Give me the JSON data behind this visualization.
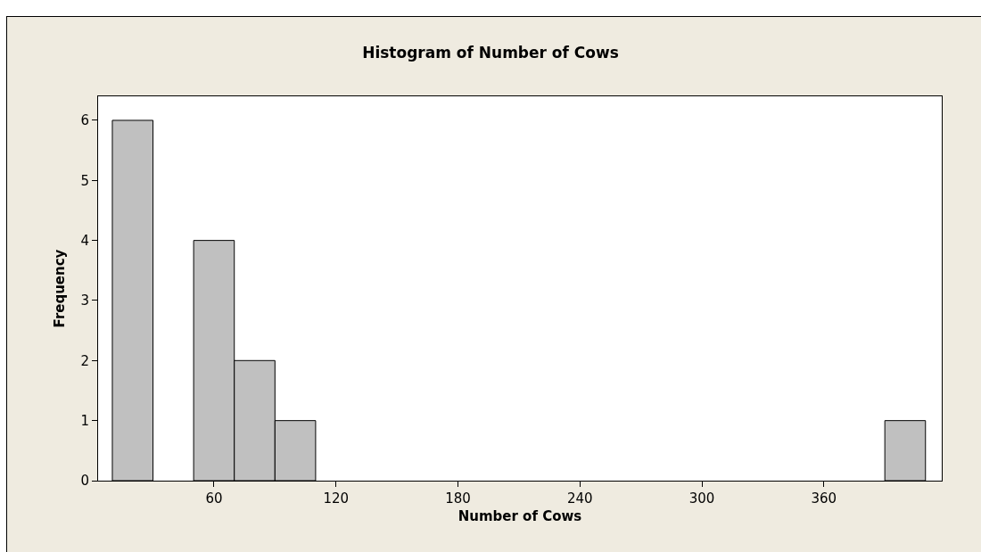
{
  "chart_data": {
    "type": "histogram",
    "title": "Histogram of Number of Cows",
    "xlabel": "Number of Cows",
    "ylabel": "Frequency",
    "bins": [
      10,
      30,
      50,
      70,
      90,
      110,
      130,
      150,
      170,
      190,
      210,
      230,
      250,
      270,
      290,
      310,
      330,
      350,
      370,
      390,
      410
    ],
    "values": [
      6,
      0,
      4,
      2,
      1,
      0,
      0,
      0,
      0,
      0,
      0,
      0,
      0,
      0,
      0,
      0,
      0,
      0,
      0,
      1
    ],
    "color": "#c0c0c0",
    "xlim": [
      3,
      418
    ],
    "xticks": [
      60,
      120,
      180,
      240,
      300,
      360
    ],
    "ylim": [
      0,
      6.4
    ],
    "yticks": [
      0,
      1,
      2,
      3,
      4,
      5,
      6
    ],
    "grid": false
  }
}
